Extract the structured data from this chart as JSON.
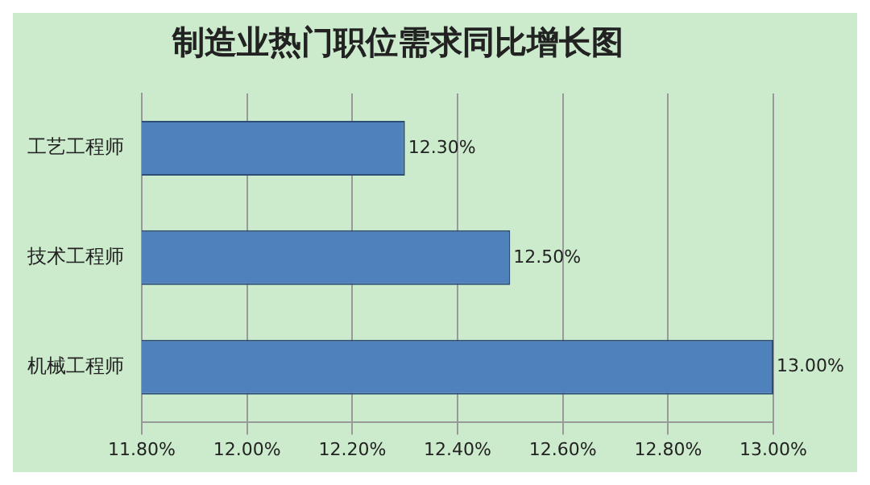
{
  "chart_data": {
    "type": "bar",
    "orientation": "horizontal",
    "title": "制造业热门职位需求同比增长图",
    "categories": [
      "工艺工程师",
      "技术工程师",
      "机械工程师"
    ],
    "values": [
      12.3,
      12.5,
      13.0
    ],
    "color": "#4f81bd",
    "value_labels": [
      "12.30%",
      "12.50%",
      "13.00%"
    ],
    "xlim": [
      11.8,
      13.0
    ],
    "xticks": [
      {
        "value": 11.8,
        "label": "11.80%"
      },
      {
        "value": 12.0,
        "label": "12.00%"
      },
      {
        "value": 12.2,
        "label": "12.20%"
      },
      {
        "value": 12.4,
        "label": "12.40%"
      },
      {
        "value": 12.6,
        "label": "12.60%"
      },
      {
        "value": 12.8,
        "label": "12.80%"
      },
      {
        "value": 13.0,
        "label": "13.00%"
      }
    ],
    "grid": "x",
    "legend": false
  }
}
